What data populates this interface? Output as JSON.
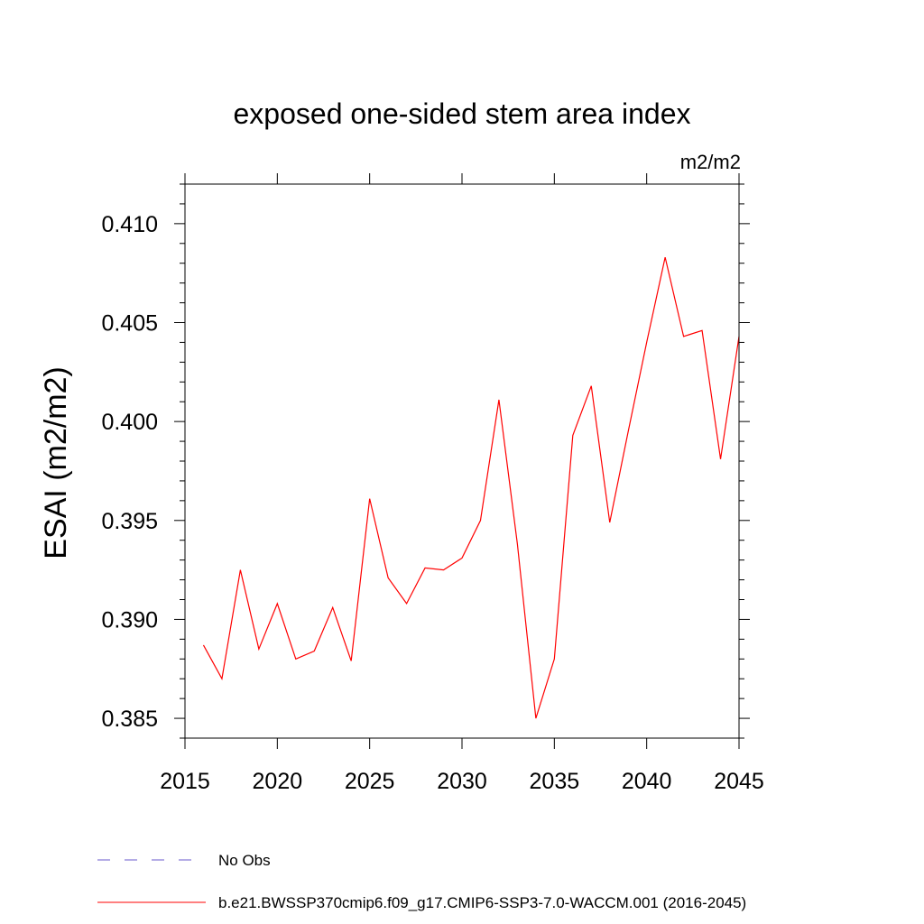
{
  "chart_data": {
    "type": "line",
    "title": "exposed one-sided stem area index",
    "units": "m2/m2",
    "xlabel": "",
    "ylabel": "ESAI  (m2/m2)",
    "xlim": [
      2015,
      2045
    ],
    "ylim": [
      0.384,
      0.412
    ],
    "x_ticks": [
      2015,
      2020,
      2025,
      2030,
      2035,
      2040,
      2045
    ],
    "x_tick_labels": [
      "2015",
      "2020",
      "2025",
      "2030",
      "2035",
      "2040",
      "2045"
    ],
    "y_ticks": [
      0.385,
      0.39,
      0.395,
      0.4,
      0.405,
      0.41
    ],
    "y_tick_labels": [
      "0.385",
      "0.390",
      "0.395",
      "0.400",
      "0.405",
      "0.410"
    ],
    "grid": false,
    "series": [
      {
        "name": "b.e21.BWSSP370cmip6.f09_g17.CMIP6-SSP3-7.0-WACCM.001 (2016-2045)",
        "color": "#ff0000",
        "dash": "solid",
        "x": [
          2016,
          2017,
          2018,
          2019,
          2020,
          2021,
          2022,
          2023,
          2024,
          2025,
          2026,
          2027,
          2028,
          2029,
          2030,
          2031,
          2032,
          2033,
          2034,
          2035,
          2036,
          2037,
          2038,
          2039,
          2040,
          2041,
          2042,
          2043,
          2044,
          2045
        ],
        "values": [
          0.3887,
          0.387,
          0.3925,
          0.3885,
          0.3908,
          0.388,
          0.3884,
          0.3906,
          0.3879,
          0.3961,
          0.3921,
          0.3908,
          0.3926,
          0.3925,
          0.3931,
          0.395,
          0.4011,
          0.3938,
          0.385,
          0.388,
          0.3993,
          0.4018,
          0.3949,
          0.3995,
          0.404,
          0.4083,
          0.4043,
          0.4046,
          0.3981,
          0.4043
        ]
      }
    ],
    "legend": [
      {
        "label": "No Obs",
        "color": "#6a5acd",
        "dash": "dashed"
      },
      {
        "label": "b.e21.BWSSP370cmip6.f09_g17.CMIP6-SSP3-7.0-WACCM.001 (2016-2045)",
        "color": "#ff0000",
        "dash": "solid"
      }
    ],
    "legend_position": "bottom"
  }
}
